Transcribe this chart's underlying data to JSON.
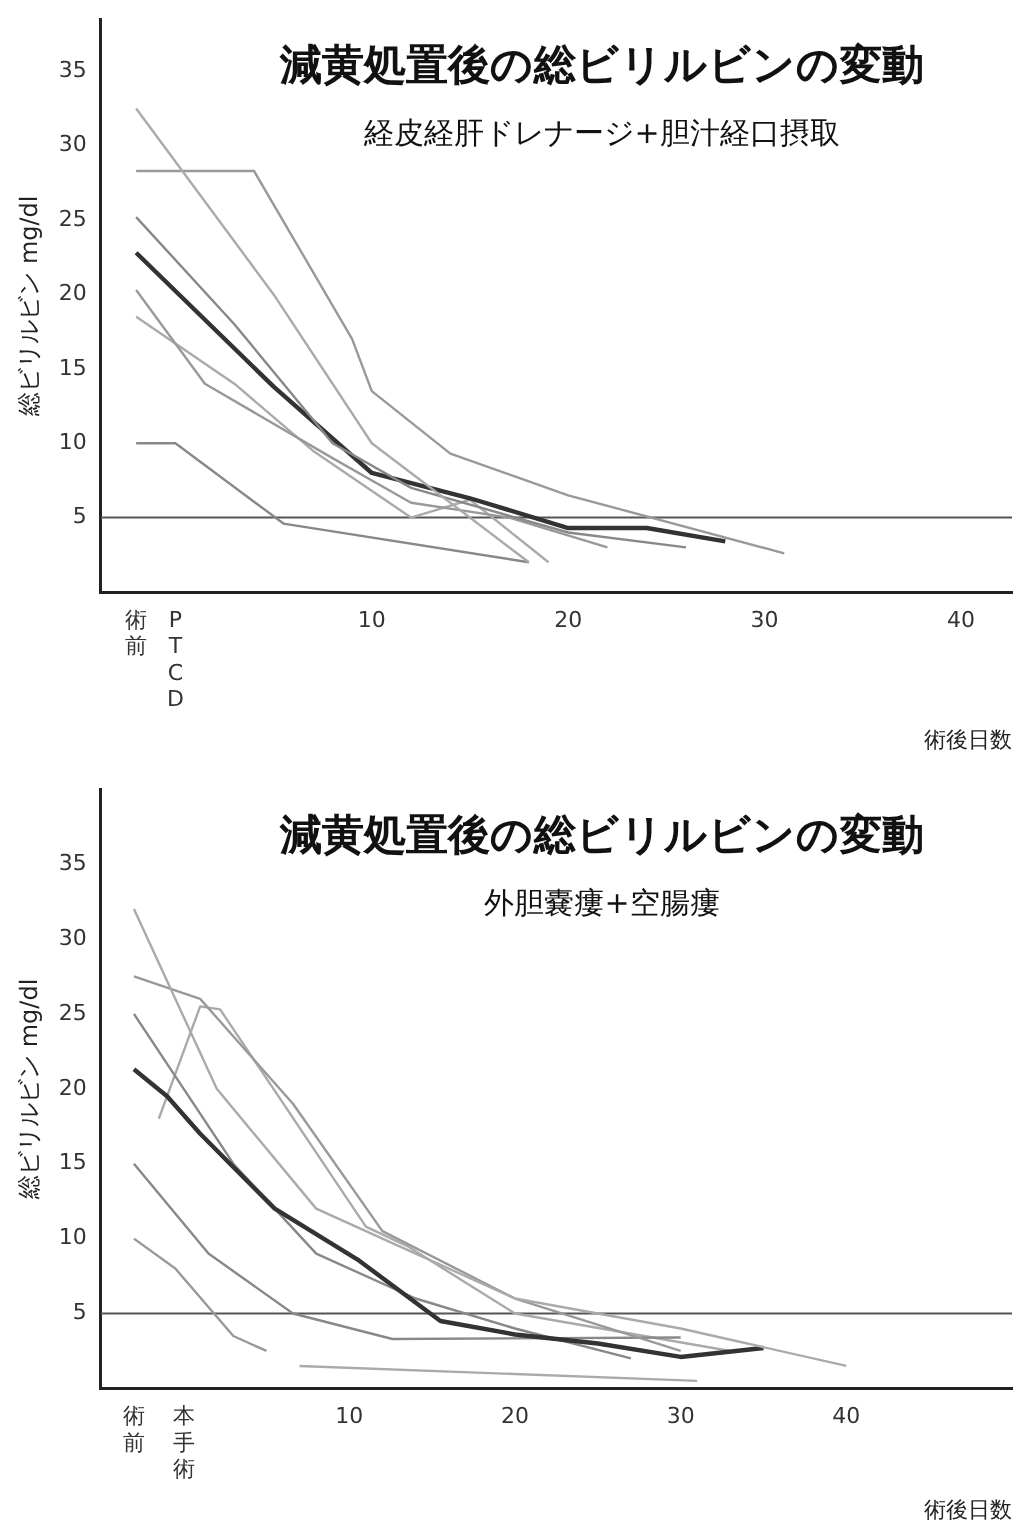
{
  "chart_data": [
    {
      "type": "line",
      "title": "減黄処置後の総ビリルビンの変動",
      "subtitle": "経皮経肝ドレナージ+胆汁経口摂取",
      "xlabel": "術後日数",
      "ylabel": "総ビリルビン mg/dl",
      "xlim": [
        -3.8,
        42.6
      ],
      "ylim": [
        0,
        38.5
      ],
      "xticks": [
        {
          "value": -2,
          "label": "術前"
        },
        {
          "value": 0,
          "label": "PTCD"
        },
        10,
        20,
        30,
        40
      ],
      "yticks": [
        5,
        10,
        15,
        20,
        25,
        30,
        35
      ],
      "grid": false,
      "legend": false,
      "marker": "none",
      "line_style": "solid",
      "ref_lines": [
        {
          "axis": "y",
          "value": 5,
          "color": "#555555"
        }
      ],
      "series": [
        {
          "color": "#aaaaaa",
          "x": [
            -2,
            5,
            10,
            18
          ],
          "values": [
            32.5,
            20,
            10,
            2
          ]
        },
        {
          "color": "#999999",
          "x": [
            -2,
            4,
            9,
            10,
            14,
            20,
            31
          ],
          "values": [
            28.3,
            28.3,
            17,
            13.5,
            9.3,
            6.5,
            2.6
          ]
        },
        {
          "color": "#888888",
          "x": [
            -2,
            3,
            8,
            12,
            20,
            26
          ],
          "values": [
            25.2,
            18,
            10,
            7,
            4,
            3
          ]
        },
        {
          "color": "#333333",
          "x": [
            -2,
            5,
            10,
            15,
            20,
            24,
            28
          ],
          "values": [
            22.8,
            13.8,
            8,
            6.3,
            4.3,
            4.3,
            3.4
          ]
        },
        {
          "color": "#999999",
          "x": [
            -2,
            1.5,
            8,
            12,
            17,
            22
          ],
          "values": [
            20.3,
            14,
            9,
            6,
            5,
            3
          ]
        },
        {
          "color": "#aaaaaa",
          "x": [
            -2,
            3,
            7,
            12,
            15,
            19
          ],
          "values": [
            18.5,
            14,
            9.5,
            5,
            6.2,
            2
          ]
        },
        {
          "color": "#888888",
          "x": [
            -2,
            0,
            5.5,
            18
          ],
          "values": [
            10,
            10,
            4.6,
            2
          ]
        }
      ]
    },
    {
      "type": "line",
      "title": "減黄処置後の総ビリルビンの変動",
      "subtitle": "外胆嚢瘻+空腸瘻",
      "xlabel": "術後日数",
      "ylabel": "総ビリルビン mg/dl",
      "xlim": [
        -5,
        50
      ],
      "ylim": [
        0,
        40
      ],
      "xticks": [
        {
          "value": -3,
          "label": "術前"
        },
        {
          "value": 0,
          "label": "本手術"
        },
        10,
        20,
        30,
        40
      ],
      "yticks": [
        5,
        10,
        15,
        20,
        25,
        30,
        35
      ],
      "grid": false,
      "legend": false,
      "marker": "none",
      "line_style": "solid",
      "ref_lines": [
        {
          "axis": "y",
          "value": 5,
          "color": "#555555"
        }
      ],
      "series": [
        {
          "color": "#aaaaaa",
          "x": [
            -3,
            2,
            8,
            12,
            20,
            30,
            40
          ],
          "values": [
            32,
            20,
            12,
            10,
            6,
            4,
            1.5
          ]
        },
        {
          "color": "#999999",
          "x": [
            -3,
            1,
            6.6,
            12,
            20,
            30
          ],
          "values": [
            27.5,
            26,
            19,
            10.5,
            6,
            2.5
          ]
        },
        {
          "color": "#333333",
          "x": [
            -3,
            -1,
            1,
            5.5,
            10.5,
            15.5,
            20,
            25,
            30,
            35
          ],
          "values": [
            21.3,
            19.5,
            17,
            12,
            8.6,
            4.5,
            3.6,
            3,
            2.1,
            2.7
          ]
        },
        {
          "color": "#888888",
          "x": [
            -3,
            3,
            8,
            14,
            20,
            27
          ],
          "values": [
            25,
            15,
            9,
            6,
            4,
            2
          ]
        },
        {
          "color": "#888888",
          "x": [
            -3,
            1.5,
            6.6,
            12.6,
            30
          ],
          "values": [
            15,
            9,
            5,
            3.3,
            3.4
          ]
        },
        {
          "color": "#999999",
          "x": [
            -3,
            -0.5,
            3,
            5
          ],
          "values": [
            10,
            8,
            3.5,
            2.5
          ]
        },
        {
          "color": "#aaaaaa",
          "x": [
            7,
            31
          ],
          "values": [
            1.5,
            0.5
          ]
        },
        {
          "color": "#aaaaaa",
          "x": [
            -1.5,
            1,
            2.2,
            11,
            13.5,
            20,
            33
          ],
          "values": [
            18,
            25.5,
            25.3,
            10.8,
            9.5,
            5,
            2.5
          ]
        }
      ]
    }
  ]
}
